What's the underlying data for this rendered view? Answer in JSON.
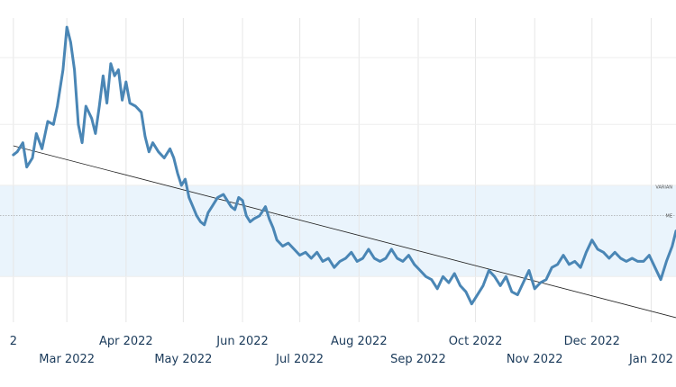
{
  "chart_data": {
    "type": "line",
    "x_axis": {
      "label_rows": [
        [
          {
            "label": "2",
            "date": "2022-02-01"
          },
          {
            "label": "Apr 2022",
            "date": "2022-04-01"
          },
          {
            "label": "Jun 2022",
            "date": "2022-06-01"
          },
          {
            "label": "Aug 2022",
            "date": "2022-08-01"
          },
          {
            "label": "Oct 2022",
            "date": "2022-10-01"
          },
          {
            "label": "Dec 2022",
            "date": "2022-12-01"
          }
        ],
        [
          {
            "label": "Mar 2022",
            "date": "2022-03-01"
          },
          {
            "label": "May 2022",
            "date": "2022-05-01"
          },
          {
            "label": "Jul 2022",
            "date": "2022-07-01"
          },
          {
            "label": "Sep 2022",
            "date": "2022-09-01"
          },
          {
            "label": "Nov 2022",
            "date": "2022-11-01"
          },
          {
            "label": "Jan 202",
            "date": "2023-01-01"
          }
        ]
      ]
    },
    "grid": true,
    "band": {
      "low": 1.5,
      "high": 4.5,
      "color": "#eaf4fc"
    },
    "reference_line": {
      "y": 3.5
    },
    "band_tags": [
      {
        "text": "VARIAN",
        "y": 4.4
      },
      {
        "text": "ME",
        "y": 3.45
      }
    ],
    "trend_line": {
      "from": {
        "date": "2022-02-01",
        "y": 5.8
      },
      "to": {
        "date": "2023-01-14",
        "y": 0.15
      }
    },
    "ylim": [
      0,
      10
    ],
    "series": [
      {
        "color": "#4a86b5",
        "points": [
          [
            "2022-02-01",
            5.5
          ],
          [
            "2022-02-03",
            5.6
          ],
          [
            "2022-02-06",
            5.9
          ],
          [
            "2022-02-08",
            5.1
          ],
          [
            "2022-02-11",
            5.4
          ],
          [
            "2022-02-13",
            6.2
          ],
          [
            "2022-02-16",
            5.7
          ],
          [
            "2022-02-19",
            6.6
          ],
          [
            "2022-02-22",
            6.5
          ],
          [
            "2022-02-24",
            7.1
          ],
          [
            "2022-02-27",
            8.3
          ],
          [
            "2022-03-01",
            9.7
          ],
          [
            "2022-03-03",
            9.2
          ],
          [
            "2022-03-05",
            8.3
          ],
          [
            "2022-03-07",
            6.5
          ],
          [
            "2022-03-09",
            5.9
          ],
          [
            "2022-03-11",
            7.1
          ],
          [
            "2022-03-14",
            6.7
          ],
          [
            "2022-03-16",
            6.2
          ],
          [
            "2022-03-18",
            7.1
          ],
          [
            "2022-03-20",
            8.1
          ],
          [
            "2022-03-22",
            7.2
          ],
          [
            "2022-03-24",
            8.5
          ],
          [
            "2022-03-26",
            8.1
          ],
          [
            "2022-03-28",
            8.3
          ],
          [
            "2022-03-30",
            7.3
          ],
          [
            "2022-04-01",
            7.9
          ],
          [
            "2022-04-03",
            7.2
          ],
          [
            "2022-04-06",
            7.1
          ],
          [
            "2022-04-09",
            6.9
          ],
          [
            "2022-04-11",
            6.1
          ],
          [
            "2022-04-13",
            5.6
          ],
          [
            "2022-04-15",
            5.9
          ],
          [
            "2022-04-18",
            5.6
          ],
          [
            "2022-04-21",
            5.4
          ],
          [
            "2022-04-24",
            5.7
          ],
          [
            "2022-04-26",
            5.4
          ],
          [
            "2022-04-28",
            4.9
          ],
          [
            "2022-04-30",
            4.5
          ],
          [
            "2022-05-02",
            4.7
          ],
          [
            "2022-05-04",
            4.1
          ],
          [
            "2022-05-06",
            3.8
          ],
          [
            "2022-05-08",
            3.5
          ],
          [
            "2022-05-10",
            3.3
          ],
          [
            "2022-05-12",
            3.2
          ],
          [
            "2022-05-14",
            3.6
          ],
          [
            "2022-05-16",
            3.8
          ],
          [
            "2022-05-19",
            4.1
          ],
          [
            "2022-05-22",
            4.2
          ],
          [
            "2022-05-24",
            4.0
          ],
          [
            "2022-05-26",
            3.8
          ],
          [
            "2022-05-28",
            3.7
          ],
          [
            "2022-05-30",
            4.1
          ],
          [
            "2022-06-01",
            4.0
          ],
          [
            "2022-06-03",
            3.5
          ],
          [
            "2022-06-05",
            3.3
          ],
          [
            "2022-06-07",
            3.4
          ],
          [
            "2022-06-10",
            3.5
          ],
          [
            "2022-06-13",
            3.8
          ],
          [
            "2022-06-15",
            3.4
          ],
          [
            "2022-06-17",
            3.1
          ],
          [
            "2022-06-19",
            2.7
          ],
          [
            "2022-06-22",
            2.5
          ],
          [
            "2022-06-25",
            2.6
          ],
          [
            "2022-06-28",
            2.4
          ],
          [
            "2022-07-01",
            2.2
          ],
          [
            "2022-07-04",
            2.3
          ],
          [
            "2022-07-07",
            2.1
          ],
          [
            "2022-07-10",
            2.3
          ],
          [
            "2022-07-13",
            2.0
          ],
          [
            "2022-07-16",
            2.1
          ],
          [
            "2022-07-19",
            1.8
          ],
          [
            "2022-07-22",
            2.0
          ],
          [
            "2022-07-25",
            2.1
          ],
          [
            "2022-07-28",
            2.3
          ],
          [
            "2022-07-31",
            2.0
          ],
          [
            "2022-08-03",
            2.1
          ],
          [
            "2022-08-06",
            2.4
          ],
          [
            "2022-08-09",
            2.1
          ],
          [
            "2022-08-12",
            2.0
          ],
          [
            "2022-08-15",
            2.1
          ],
          [
            "2022-08-18",
            2.4
          ],
          [
            "2022-08-21",
            2.1
          ],
          [
            "2022-08-24",
            2.0
          ],
          [
            "2022-08-27",
            2.2
          ],
          [
            "2022-08-30",
            1.9
          ],
          [
            "2022-09-02",
            1.7
          ],
          [
            "2022-09-05",
            1.5
          ],
          [
            "2022-09-08",
            1.4
          ],
          [
            "2022-09-11",
            1.1
          ],
          [
            "2022-09-14",
            1.5
          ],
          [
            "2022-09-17",
            1.3
          ],
          [
            "2022-09-20",
            1.6
          ],
          [
            "2022-09-23",
            1.2
          ],
          [
            "2022-09-26",
            1.0
          ],
          [
            "2022-09-29",
            0.6
          ],
          [
            "2022-10-02",
            0.9
          ],
          [
            "2022-10-05",
            1.2
          ],
          [
            "2022-10-08",
            1.7
          ],
          [
            "2022-10-11",
            1.5
          ],
          [
            "2022-10-14",
            1.2
          ],
          [
            "2022-10-17",
            1.5
          ],
          [
            "2022-10-20",
            1.0
          ],
          [
            "2022-10-23",
            0.9
          ],
          [
            "2022-10-26",
            1.3
          ],
          [
            "2022-10-29",
            1.7
          ],
          [
            "2022-11-01",
            1.1
          ],
          [
            "2022-11-04",
            1.3
          ],
          [
            "2022-11-07",
            1.4
          ],
          [
            "2022-11-10",
            1.8
          ],
          [
            "2022-11-13",
            1.9
          ],
          [
            "2022-11-16",
            2.2
          ],
          [
            "2022-11-19",
            1.9
          ],
          [
            "2022-11-22",
            2.0
          ],
          [
            "2022-11-25",
            1.8
          ],
          [
            "2022-11-28",
            2.3
          ],
          [
            "2022-12-01",
            2.7
          ],
          [
            "2022-12-04",
            2.4
          ],
          [
            "2022-12-07",
            2.3
          ],
          [
            "2022-12-10",
            2.1
          ],
          [
            "2022-12-13",
            2.3
          ],
          [
            "2022-12-16",
            2.1
          ],
          [
            "2022-12-19",
            2.0
          ],
          [
            "2022-12-22",
            2.1
          ],
          [
            "2022-12-25",
            2.0
          ],
          [
            "2022-12-28",
            2.0
          ],
          [
            "2022-12-31",
            2.2
          ],
          [
            "2023-01-03",
            1.8
          ],
          [
            "2023-01-06",
            1.4
          ],
          [
            "2023-01-09",
            2.0
          ],
          [
            "2023-01-12",
            2.5
          ],
          [
            "2023-01-14",
            3.0
          ]
        ]
      }
    ]
  }
}
